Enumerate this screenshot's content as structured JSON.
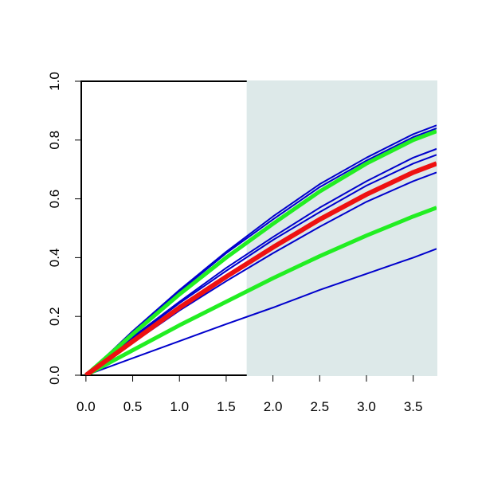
{
  "chart_data": {
    "type": "line",
    "x": [
      0,
      0.5,
      1,
      1.5,
      2,
      2.5,
      3,
      3.5,
      3.75
    ],
    "series": [
      {
        "color": "#0000cc",
        "line_width": 2,
        "values": [
          0,
          0.15,
          0.29,
          0.42,
          0.54,
          0.65,
          0.74,
          0.82,
          0.85
        ]
      },
      {
        "color": "#0000cc",
        "line_width": 2,
        "values": [
          0,
          0.145,
          0.285,
          0.415,
          0.53,
          0.64,
          0.73,
          0.81,
          0.84
        ]
      },
      {
        "color": "#0000cc",
        "line_width": 2,
        "values": [
          0,
          0.13,
          0.25,
          0.365,
          0.47,
          0.57,
          0.66,
          0.74,
          0.77
        ]
      },
      {
        "color": "#0000cc",
        "line_width": 2,
        "values": [
          0,
          0.125,
          0.245,
          0.355,
          0.46,
          0.555,
          0.645,
          0.72,
          0.75
        ]
      },
      {
        "color": "#0000cc",
        "line_width": 2,
        "values": [
          0,
          0.11,
          0.22,
          0.32,
          0.415,
          0.505,
          0.59,
          0.66,
          0.69
        ]
      },
      {
        "color": "#0000cc",
        "line_width": 2,
        "values": [
          0,
          0.058,
          0.116,
          0.174,
          0.23,
          0.29,
          0.345,
          0.4,
          0.43
        ]
      },
      {
        "color": "#22ee22",
        "line_width": 5,
        "values": [
          0,
          0.14,
          0.275,
          0.4,
          0.515,
          0.625,
          0.72,
          0.8,
          0.83
        ]
      },
      {
        "color": "#22ee22",
        "line_width": 5,
        "values": [
          0,
          0.085,
          0.17,
          0.25,
          0.33,
          0.405,
          0.475,
          0.54,
          0.57
        ]
      },
      {
        "color": "#ee1111",
        "line_width": 6,
        "values": [
          0,
          0.115,
          0.23,
          0.335,
          0.435,
          0.53,
          0.615,
          0.69,
          0.72
        ]
      }
    ],
    "shade": {
      "x": [
        1.72,
        3.75
      ],
      "color": "#dde9e9"
    },
    "xlim": [
      -0.05,
      3.75
    ],
    "xticks": [
      {
        "value": 0,
        "label": "0.0"
      },
      0.5,
      {
        "value": 1,
        "label": "1.0"
      },
      1.5,
      {
        "value": 2,
        "label": "2.0"
      },
      2.5,
      {
        "value": 3,
        "label": "3.0"
      },
      3.5
    ],
    "ylim": [
      0,
      1
    ],
    "yticks": [
      {
        "value": 0,
        "label": "0.0"
      },
      0.2,
      0.4,
      0.6,
      0.8,
      {
        "value": 1,
        "label": "1.0"
      }
    ]
  }
}
